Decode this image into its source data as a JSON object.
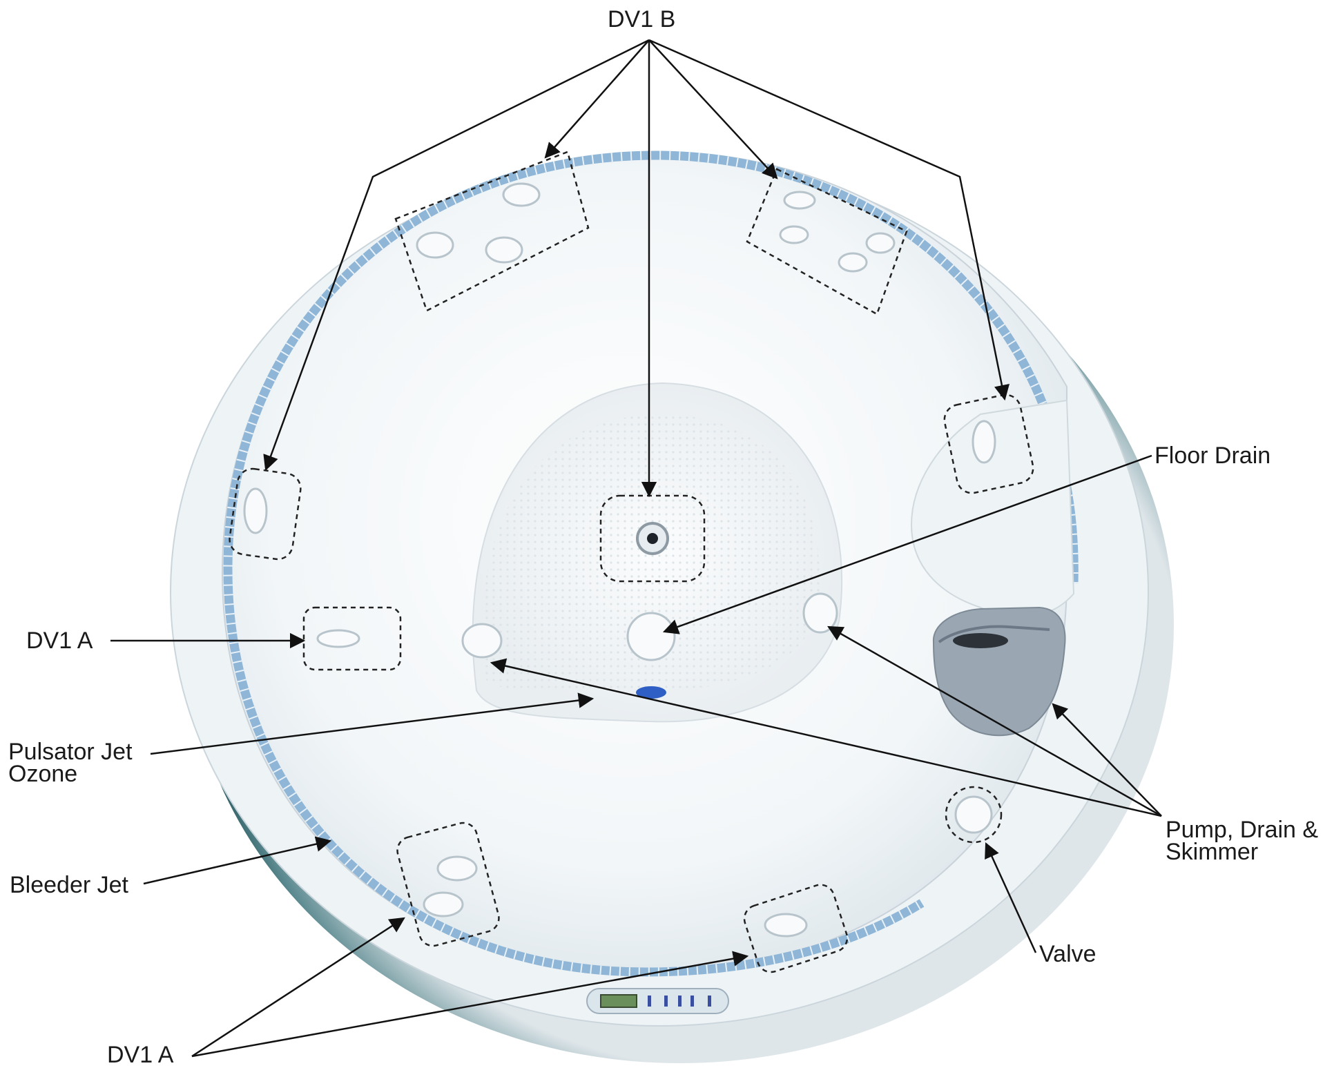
{
  "labels": {
    "dv1_b": "DV1 B",
    "floor_drain": "Floor Drain",
    "dv1_a_left": "DV1 A",
    "pulsator_line1": "Pulsator Jet",
    "pulsator_line2": "Ozone",
    "bleeder_jet": "Bleeder Jet",
    "pump_line1": "Pump, Drain &",
    "pump_line2": "Skimmer",
    "valve": "Valve",
    "dv1_a_bottom": "DV1 A"
  },
  "colors": {
    "tub_shell": "#f4f7f9",
    "tub_rim_shadow": "#12494f",
    "tile_band": "#8fb6d6",
    "skimmer": "#9aa7b3",
    "drain_plug": "#2f5fc4",
    "callout_line": "#111111",
    "highlight_box": "#222222"
  }
}
